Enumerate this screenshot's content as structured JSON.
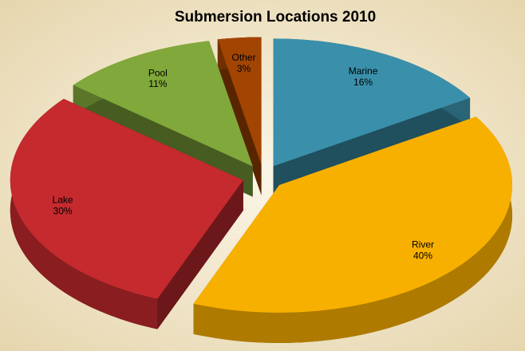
{
  "chart_data": {
    "type": "pie",
    "title": "Submersion Locations 2010",
    "categories": [
      "Marine",
      "River",
      "Lake",
      "Pool",
      "Other"
    ],
    "values": [
      16,
      40,
      30,
      11,
      3
    ],
    "value_labels": [
      "16%",
      "40%",
      "30%",
      "11%",
      "3%"
    ],
    "colors": [
      "#3a90aa",
      "#f8b000",
      "#c42a2e",
      "#80a83a",
      "#a24402"
    ]
  }
}
